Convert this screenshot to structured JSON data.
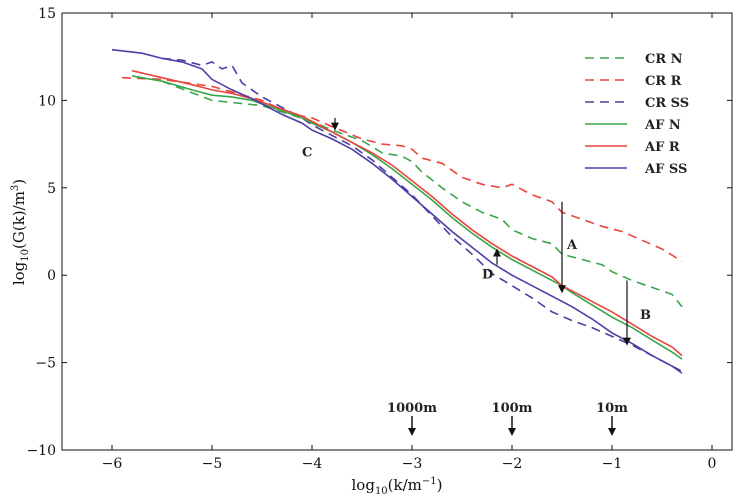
{
  "chart_data": {
    "type": "line",
    "xlabel": "log10(k/m⁻¹)",
    "xlabel_parts": {
      "pre": "log",
      "sub": "10",
      "post": "(k/m",
      "sup": "−1",
      "end": ")"
    },
    "ylabel": "log10(G(k)/m³)",
    "ylabel_parts": {
      "pre": "log",
      "sub": "10",
      "post": "(G(k)/m",
      "sup": "3",
      "end": ")"
    },
    "xlim": [
      -6.5,
      0.2
    ],
    "ylim": [
      -10,
      15
    ],
    "xticks": [
      -6,
      -5,
      -4,
      -3,
      -2,
      -1,
      0
    ],
    "xtick_labels": [
      "−6",
      "−5",
      "−4",
      "−3",
      "−2",
      "−1",
      "0"
    ],
    "yticks": [
      -10,
      -5,
      0,
      5,
      10,
      15
    ],
    "ytick_labels": [
      "−10",
      "−5",
      "0",
      "5",
      "10",
      "15"
    ],
    "grid": false,
    "legend_position": "top-right",
    "colors": {
      "green": "#3aa54a",
      "red": "#e8453c",
      "purple": "#4b3fa6"
    },
    "series": [
      {
        "name": "CR N",
        "style": "dashed",
        "color": "#3aa54a",
        "x": [
          -5.5,
          -5.0,
          -4.5,
          -4.0,
          -3.8,
          -3.5,
          -3.3,
          -3.1,
          -3.0,
          -2.9,
          -2.7,
          -2.5,
          -2.3,
          -2.1,
          -2.0,
          -1.8,
          -1.6,
          -1.5,
          -1.3,
          -1.1,
          -1.0,
          -0.8,
          -0.6,
          -0.4,
          -0.3
        ],
        "y": [
          11.1,
          10.0,
          9.7,
          8.8,
          8.3,
          7.7,
          7.0,
          6.8,
          6.5,
          5.9,
          5.0,
          4.2,
          3.6,
          3.2,
          2.6,
          2.1,
          1.8,
          1.2,
          0.9,
          0.6,
          0.2,
          -0.3,
          -0.7,
          -1.1,
          -1.8
        ]
      },
      {
        "name": "CR R",
        "style": "dashed",
        "color": "#e8453c",
        "x": [
          -5.9,
          -5.5,
          -5.0,
          -4.5,
          -4.2,
          -4.0,
          -3.8,
          -3.5,
          -3.3,
          -3.1,
          -3.0,
          -2.9,
          -2.7,
          -2.5,
          -2.3,
          -2.1,
          -2.0,
          -1.8,
          -1.6,
          -1.5,
          -1.3,
          -1.1,
          -0.9,
          -0.7,
          -0.5,
          -0.3
        ],
        "y": [
          11.3,
          11.2,
          10.8,
          10.0,
          9.2,
          9.0,
          8.5,
          7.8,
          7.5,
          7.4,
          7.2,
          6.7,
          6.4,
          5.6,
          5.2,
          5.0,
          5.2,
          4.6,
          4.2,
          3.6,
          3.2,
          2.8,
          2.5,
          2.0,
          1.5,
          0.8
        ]
      },
      {
        "name": "CR SS",
        "style": "dashed",
        "color": "#4b3fa6",
        "x": [
          -5.5,
          -5.3,
          -5.1,
          -5.0,
          -4.9,
          -4.8,
          -4.7,
          -4.5,
          -4.3,
          -4.1,
          -4.0,
          -3.8,
          -3.6,
          -3.4,
          -3.2,
          -3.0,
          -2.8,
          -2.6,
          -2.4,
          -2.2,
          -2.0,
          -1.8,
          -1.6,
          -1.4,
          -1.2,
          -1.0,
          -0.8,
          -0.6,
          -0.4,
          -0.3
        ],
        "y": [
          12.4,
          12.3,
          12.0,
          12.2,
          11.8,
          12.0,
          11.0,
          10.2,
          9.6,
          9.0,
          8.6,
          8.0,
          7.4,
          6.6,
          5.6,
          4.6,
          3.4,
          2.2,
          1.2,
          0.1,
          -0.6,
          -1.3,
          -2.1,
          -2.6,
          -3.0,
          -3.5,
          -4.0,
          -4.6,
          -5.2,
          -5.5
        ]
      },
      {
        "name": "AF N",
        "style": "solid",
        "color": "#3aa54a",
        "x": [
          -5.8,
          -5.5,
          -5.2,
          -5.0,
          -4.8,
          -4.6,
          -4.5,
          -4.3,
          -4.1,
          -4.0,
          -3.8,
          -3.6,
          -3.4,
          -3.2,
          -3.0,
          -2.8,
          -2.6,
          -2.4,
          -2.2,
          -2.0,
          -1.8,
          -1.6,
          -1.5,
          -1.4,
          -1.2,
          -1.0,
          -0.8,
          -0.6,
          -0.4,
          -0.3
        ],
        "y": [
          11.4,
          11.1,
          10.6,
          10.3,
          10.2,
          10.0,
          9.8,
          9.4,
          9.0,
          8.7,
          8.2,
          7.6,
          6.9,
          6.1,
          5.2,
          4.3,
          3.3,
          2.4,
          1.6,
          0.9,
          0.3,
          -0.3,
          -0.6,
          -1.0,
          -1.7,
          -2.4,
          -3.0,
          -3.7,
          -4.4,
          -4.8
        ]
      },
      {
        "name": "AF R",
        "style": "solid",
        "color": "#e8453c",
        "x": [
          -5.8,
          -5.5,
          -5.2,
          -5.0,
          -4.8,
          -4.6,
          -4.5,
          -4.3,
          -4.1,
          -4.0,
          -3.8,
          -3.6,
          -3.4,
          -3.2,
          -3.0,
          -2.8,
          -2.6,
          -2.4,
          -2.2,
          -2.0,
          -1.8,
          -1.6,
          -1.5,
          -1.4,
          -1.2,
          -1.0,
          -0.8,
          -0.6,
          -0.4,
          -0.3
        ],
        "y": [
          11.7,
          11.3,
          10.9,
          10.6,
          10.4,
          10.1,
          9.9,
          9.5,
          9.1,
          8.8,
          8.2,
          7.6,
          7.0,
          6.3,
          5.4,
          4.5,
          3.5,
          2.6,
          1.8,
          1.1,
          0.5,
          -0.1,
          -0.6,
          -0.9,
          -1.5,
          -2.1,
          -2.8,
          -3.5,
          -4.1,
          -4.6
        ]
      },
      {
        "name": "AF SS",
        "style": "solid",
        "color": "#4b3fa6",
        "x": [
          -6.0,
          -5.7,
          -5.5,
          -5.3,
          -5.1,
          -5.0,
          -4.8,
          -4.6,
          -4.5,
          -4.3,
          -4.1,
          -4.0,
          -3.8,
          -3.6,
          -3.4,
          -3.2,
          -3.0,
          -2.8,
          -2.6,
          -2.4,
          -2.2,
          -2.0,
          -1.8,
          -1.6,
          -1.4,
          -1.2,
          -1.0,
          -0.8,
          -0.6,
          -0.4,
          -0.3
        ],
        "y": [
          12.9,
          12.7,
          12.4,
          12.2,
          11.8,
          11.2,
          10.6,
          10.1,
          9.8,
          9.2,
          8.7,
          8.3,
          7.8,
          7.2,
          6.4,
          5.5,
          4.5,
          3.5,
          2.5,
          1.6,
          0.7,
          0.0,
          -0.6,
          -1.2,
          -1.8,
          -2.5,
          -3.3,
          -3.9,
          -4.6,
          -5.2,
          -5.6
        ]
      }
    ],
    "annotations": [
      {
        "label": "A",
        "x": -1.45,
        "y": 1.5,
        "arrow_from": [
          -1.5,
          4.2
        ],
        "arrow_to": [
          -1.5,
          -0.8
        ]
      },
      {
        "label": "B",
        "x": -0.72,
        "y": -2.5,
        "arrow_from": [
          -0.85,
          -0.3
        ],
        "arrow_to": [
          -0.85,
          -3.8
        ]
      },
      {
        "label": "C",
        "x": -4.1,
        "y": 6.8,
        "arrow_from": [
          -3.77,
          9.0
        ],
        "arrow_to": [
          -3.77,
          8.5
        ]
      },
      {
        "label": "D",
        "x": -2.3,
        "y": -0.2,
        "arrow_from": [
          -2.15,
          0.6
        ],
        "arrow_to": [
          -2.15,
          1.3
        ]
      }
    ],
    "scale_markers": [
      {
        "label": "1000m",
        "x": -3.0
      },
      {
        "label": "100m",
        "x": -2.0
      },
      {
        "label": "10m",
        "x": -1.0
      }
    ]
  }
}
